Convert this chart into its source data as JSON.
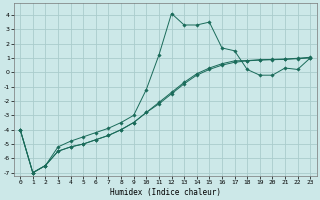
{
  "title": "",
  "xlabel": "Humidex (Indice chaleur)",
  "background_color": "#cce8e8",
  "grid_color": "#aacccc",
  "line_color": "#1a6b5a",
  "xlim": [
    -0.5,
    23.5
  ],
  "ylim": [
    -7.2,
    4.8
  ],
  "yticks": [
    -7,
    -6,
    -5,
    -4,
    -3,
    -2,
    -1,
    0,
    1,
    2,
    3,
    4
  ],
  "xticks": [
    0,
    1,
    2,
    3,
    4,
    5,
    6,
    7,
    8,
    9,
    10,
    11,
    12,
    13,
    14,
    15,
    16,
    17,
    18,
    19,
    20,
    21,
    22,
    23
  ],
  "x_data": [
    0,
    1,
    2,
    3,
    4,
    5,
    6,
    7,
    8,
    9,
    10,
    11,
    12,
    13,
    14,
    15,
    16,
    17,
    18,
    19,
    20,
    21,
    22,
    23
  ],
  "y_main": [
    -4.0,
    -7.0,
    -6.5,
    -5.2,
    -4.8,
    -4.5,
    -4.2,
    -3.9,
    -3.5,
    -3.0,
    -1.2,
    1.2,
    4.1,
    3.3,
    3.3,
    3.5,
    1.7,
    1.5,
    0.2,
    -0.2,
    -0.2,
    0.3,
    0.2,
    1.0
  ],
  "y_line2": [
    -4.0,
    -7.0,
    -6.5,
    -5.5,
    -5.2,
    -5.0,
    -4.7,
    -4.4,
    -4.0,
    -3.5,
    -2.8,
    -2.2,
    -1.5,
    -0.8,
    -0.2,
    0.2,
    0.5,
    0.7,
    0.8,
    0.85,
    0.88,
    0.9,
    0.95,
    1.0
  ],
  "y_line3": [
    -4.0,
    -7.0,
    -6.5,
    -5.5,
    -5.2,
    -5.0,
    -4.7,
    -4.4,
    -4.0,
    -3.5,
    -2.8,
    -2.1,
    -1.4,
    -0.7,
    -0.1,
    0.3,
    0.6,
    0.8,
    0.82,
    0.88,
    0.9,
    0.93,
    0.98,
    1.05
  ]
}
